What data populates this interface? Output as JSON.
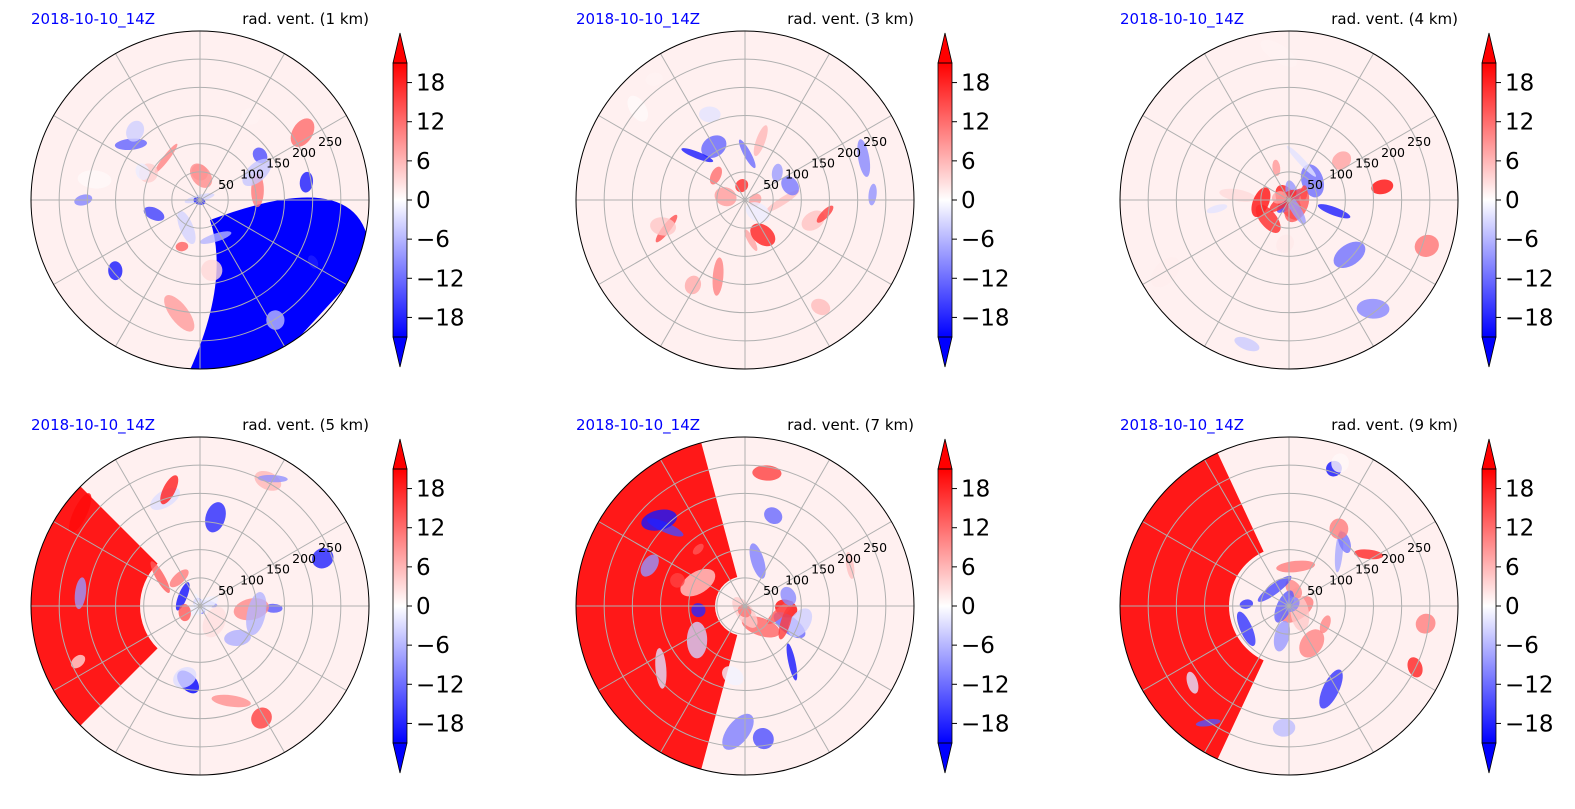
{
  "chart_data": {
    "type": "polar-contour-grid",
    "colormap": [
      "#0000ff",
      "#ffffff",
      "#ff0000"
    ],
    "colorbar": {
      "ticks": [
        18,
        12,
        6,
        0,
        -6,
        -12,
        -18
      ],
      "tick_labels": [
        "18",
        "12",
        "6",
        "0",
        "−6",
        "−12",
        "−18"
      ],
      "range": [
        -21,
        21
      ],
      "extend": "both"
    },
    "radial_ticks": [
      50,
      100,
      150,
      200,
      250
    ],
    "radial_tick_labels": [
      "50",
      "100",
      "150",
      "200",
      "250"
    ],
    "radial_max": 300,
    "spoke_angles_deg": [
      0,
      30,
      60,
      90,
      120,
      150,
      180,
      210,
      240,
      270,
      300,
      330
    ],
    "panels": [
      {
        "date": "2018-10-10_14Z",
        "title": "rad. vent. (1 km)"
      },
      {
        "date": "2018-10-10_14Z",
        "title": "rad. vent. (3 km)"
      },
      {
        "date": "2018-10-10_14Z",
        "title": "rad. vent. (4 km)"
      },
      {
        "date": "2018-10-10_14Z",
        "title": "rad. vent. (5 km)"
      },
      {
        "date": "2018-10-10_14Z",
        "title": "rad. vent. (7 km)"
      },
      {
        "date": "2018-10-10_14Z",
        "title": "rad. vent. (9 km)"
      }
    ]
  }
}
